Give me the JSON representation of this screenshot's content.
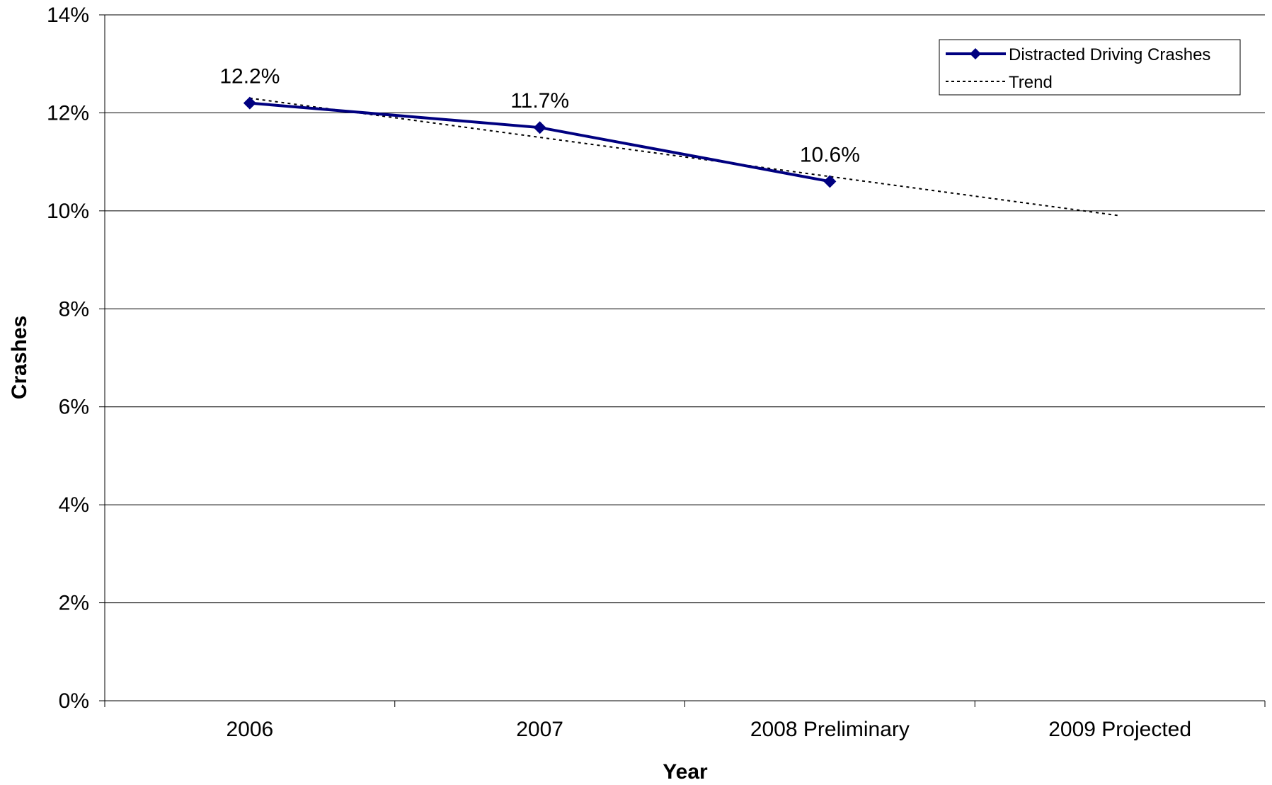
{
  "chart_data": {
    "type": "line",
    "title": "",
    "xlabel": "Year",
    "ylabel": "Crashes",
    "categories": [
      "2006",
      "2007",
      "2008 Preliminary",
      "2009 Projected"
    ],
    "ylim": [
      0,
      14
    ],
    "yticks": [
      0,
      2,
      4,
      6,
      8,
      10,
      12,
      14
    ],
    "ytick_labels": [
      "0%",
      "2%",
      "4%",
      "6%",
      "8%",
      "10%",
      "12%",
      "14%"
    ],
    "grid": true,
    "legend_position": "top-right",
    "series": [
      {
        "name": "Distracted Driving Crashes",
        "values": [
          12.2,
          11.7,
          10.6,
          null
        ],
        "data_labels": [
          "12.2%",
          "11.7%",
          "10.6%",
          ""
        ],
        "color": "#000080",
        "marker": "diamond"
      },
      {
        "name": "Trend",
        "values": [
          12.3,
          11.5,
          10.7,
          9.9
        ],
        "color": "#000000",
        "line_style": "dotted"
      }
    ]
  }
}
